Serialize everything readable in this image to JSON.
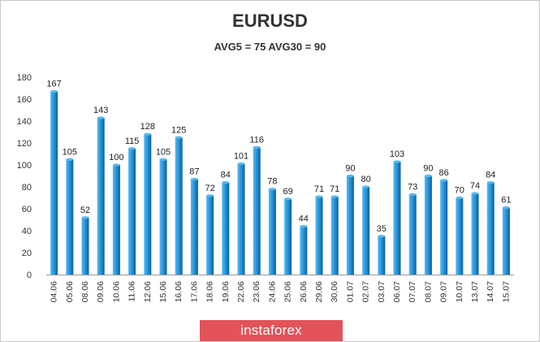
{
  "chart_data": {
    "type": "bar",
    "title": "EURUSD",
    "subtitle": "AVG5 = 75 AVG30 = 90",
    "categories": [
      "04.06",
      "05.06",
      "08.06",
      "09.06",
      "10.06",
      "11.06",
      "12.06",
      "15.06",
      "16.06",
      "17.06",
      "18.06",
      "19.06",
      "22.06",
      "23.06",
      "24.06",
      "25.06",
      "26.06",
      "29.06",
      "30.06",
      "01.07",
      "02.07",
      "03.07",
      "06.07",
      "07.07",
      "08.07",
      "09.07",
      "10.07",
      "13.07",
      "14.07",
      "15.07"
    ],
    "values": [
      167,
      105,
      52,
      143,
      100,
      115,
      128,
      105,
      125,
      87,
      72,
      84,
      101,
      116,
      78,
      69,
      44,
      71,
      71,
      90,
      80,
      35,
      103,
      73,
      90,
      86,
      70,
      74,
      84,
      61
    ],
    "ylim": [
      0,
      180
    ],
    "yticks": [
      0,
      20,
      40,
      60,
      80,
      100,
      120,
      140,
      160,
      180
    ],
    "grid": true,
    "colors": {
      "bar": "#1f8fd6",
      "bar_dark": "#0d5e99",
      "bar_light": "#5bb8ef",
      "axis": "#999999"
    }
  },
  "watermark": {
    "text": "instaforex",
    "background": "#e2535a"
  }
}
